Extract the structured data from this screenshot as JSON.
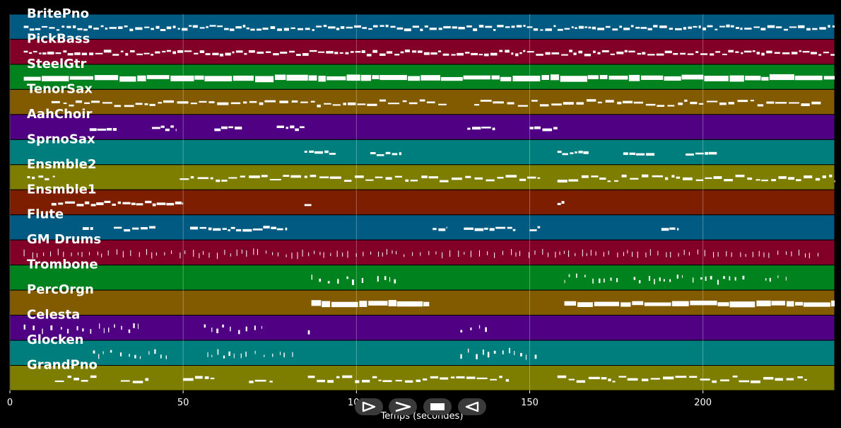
{
  "chart_data": {
    "type": "piano-roll",
    "xlabel": "Temps (secondes)",
    "xlim": [
      0,
      238
    ],
    "xticks": [
      0,
      50,
      100,
      150,
      200
    ],
    "grid": true,
    "tracks": [
      {
        "name": "BritePno",
        "color": "#005a82",
        "density": "dense",
        "notes": [
          [
            4,
            238
          ]
        ]
      },
      {
        "name": "PickBass",
        "color": "#820028",
        "density": "dense",
        "notes": [
          [
            4,
            238
          ]
        ]
      },
      {
        "name": "SteelGtr",
        "color": "#00821e",
        "density": "block",
        "notes": [
          [
            4,
            238
          ]
        ]
      },
      {
        "name": "TenorSax",
        "color": "#825a00",
        "density": "medium",
        "notes": [
          [
            12,
            126
          ],
          [
            134,
            234
          ]
        ]
      },
      {
        "name": "AahChoir",
        "color": "#500082",
        "density": "phrase",
        "notes": [
          [
            23,
            31
          ],
          [
            41,
            48
          ],
          [
            59,
            67
          ],
          [
            77,
            85
          ],
          [
            132,
            140
          ],
          [
            150,
            158
          ]
        ]
      },
      {
        "name": "SprnoSax",
        "color": "#007d7d",
        "density": "phrase",
        "notes": [
          [
            85,
            94
          ],
          [
            104,
            113
          ],
          [
            158,
            167
          ],
          [
            177,
            186
          ],
          [
            195,
            204
          ]
        ]
      },
      {
        "name": "Ensmble2",
        "color": "#7d7d00",
        "density": "medium",
        "notes": [
          [
            5,
            13
          ],
          [
            49,
            84
          ],
          [
            85,
            153
          ],
          [
            158,
            238
          ]
        ]
      },
      {
        "name": "Ensmble1",
        "color": "#7d1e00",
        "density": "phrase",
        "notes": [
          [
            12,
            50
          ],
          [
            85,
            87
          ],
          [
            158,
            160
          ]
        ]
      },
      {
        "name": "Flute",
        "color": "#005a82",
        "density": "phrase",
        "notes": [
          [
            21,
            24
          ],
          [
            30,
            42
          ],
          [
            52,
            80
          ],
          [
            122,
            126
          ],
          [
            131,
            146
          ],
          [
            150,
            153
          ],
          [
            188,
            193
          ]
        ]
      },
      {
        "name": "GM Drums",
        "color": "#820028",
        "density": "drums",
        "notes": [
          [
            4,
            234
          ]
        ]
      },
      {
        "name": "Trombone",
        "color": "#00821e",
        "density": "sparse",
        "notes": [
          [
            87,
            103
          ],
          [
            106,
            113
          ],
          [
            160,
            176
          ],
          [
            180,
            194
          ],
          [
            197,
            213
          ],
          [
            218,
            224
          ]
        ]
      },
      {
        "name": "PercOrgn",
        "color": "#825a00",
        "density": "block",
        "notes": [
          [
            87,
            121
          ],
          [
            160,
            238
          ]
        ]
      },
      {
        "name": "Celesta",
        "color": "#500082",
        "density": "sparse",
        "notes": [
          [
            4,
            38
          ],
          [
            56,
            74
          ],
          [
            86,
            87
          ],
          [
            130,
            138
          ]
        ]
      },
      {
        "name": "Glocken",
        "color": "#007d7d",
        "density": "sparse",
        "notes": [
          [
            24,
            46
          ],
          [
            57,
            82
          ],
          [
            130,
            152
          ]
        ]
      },
      {
        "name": "GrandPno",
        "color": "#7d7d00",
        "density": "medium",
        "notes": [
          [
            13,
            25
          ],
          [
            32,
            40
          ],
          [
            50,
            59
          ],
          [
            69,
            76
          ],
          [
            86,
            144
          ],
          [
            158,
            230
          ]
        ]
      }
    ]
  },
  "controls": {
    "play_icon": "play-icon",
    "next_icon": "next-icon",
    "stop_icon": "stop-icon",
    "prev_icon": "prev-icon"
  }
}
